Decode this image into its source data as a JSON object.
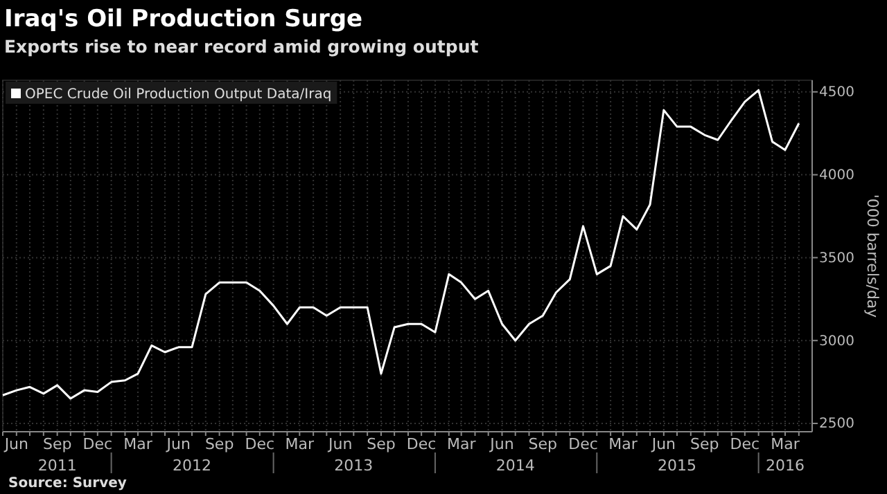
{
  "chart_data": {
    "type": "line",
    "title": "Iraq's Oil Production Surge",
    "subtitle": "Exports rise to near record amid growing output",
    "ylabel": "'000 barrels/day",
    "x": [
      "2011-05",
      "2011-06",
      "2011-07",
      "2011-08",
      "2011-09",
      "2011-10",
      "2011-11",
      "2011-12",
      "2012-01",
      "2012-02",
      "2012-03",
      "2012-04",
      "2012-05",
      "2012-06",
      "2012-07",
      "2012-08",
      "2012-09",
      "2012-10",
      "2012-11",
      "2012-12",
      "2013-01",
      "2013-02",
      "2013-03",
      "2013-04",
      "2013-05",
      "2013-06",
      "2013-07",
      "2013-08",
      "2013-09",
      "2013-10",
      "2013-11",
      "2013-12",
      "2014-01",
      "2014-02",
      "2014-03",
      "2014-04",
      "2014-05",
      "2014-06",
      "2014-07",
      "2014-08",
      "2014-09",
      "2014-10",
      "2014-11",
      "2014-12",
      "2015-01",
      "2015-02",
      "2015-03",
      "2015-04",
      "2015-05",
      "2015-06",
      "2015-07",
      "2015-08",
      "2015-09",
      "2015-10",
      "2015-11",
      "2015-12",
      "2016-01",
      "2016-02",
      "2016-03",
      "2016-04"
    ],
    "series": [
      {
        "name": "OPEC Crude Oil Production Output Data/Iraq",
        "color": "#ffffff",
        "values": [
          2670,
          2700,
          2720,
          2680,
          2730,
          2650,
          2700,
          2690,
          2750,
          2760,
          2800,
          2970,
          2930,
          2960,
          2960,
          3280,
          3350,
          3350,
          3350,
          3300,
          3210,
          3100,
          3200,
          3200,
          3150,
          3200,
          3200,
          3200,
          2800,
          3080,
          3100,
          3100,
          3050,
          3400,
          3350,
          3250,
          3300,
          3100,
          3000,
          3100,
          3150,
          3290,
          3370,
          3690,
          3400,
          3450,
          3750,
          3670,
          3820,
          4390,
          4290,
          4290,
          4240,
          4210,
          4330,
          4440,
          4510,
          4200,
          4150,
          4310
        ]
      }
    ],
    "xlim": [
      "2011-05",
      "2016-05"
    ],
    "ylim": [
      2450,
      4570
    ],
    "yticks": [
      2500,
      3000,
      3500,
      4000,
      4500
    ],
    "xticks": [
      {
        "value": "2011-05",
        "label": null
      },
      {
        "value": "2011-06",
        "label": "Jun"
      },
      {
        "value": "2011-07",
        "label": null
      },
      {
        "value": "2011-08",
        "label": null
      },
      {
        "value": "2011-09",
        "label": "Sep"
      },
      {
        "value": "2011-10",
        "label": null
      },
      {
        "value": "2011-11",
        "label": null
      },
      {
        "value": "2011-12",
        "label": "Dec"
      },
      {
        "value": "2012-01",
        "label": null
      },
      {
        "value": "2012-02",
        "label": null
      },
      {
        "value": "2012-03",
        "label": "Mar"
      },
      {
        "value": "2012-04",
        "label": null
      },
      {
        "value": "2012-05",
        "label": null
      },
      {
        "value": "2012-06",
        "label": "Jun"
      },
      {
        "value": "2012-07",
        "label": null
      },
      {
        "value": "2012-08",
        "label": null
      },
      {
        "value": "2012-09",
        "label": "Sep"
      },
      {
        "value": "2012-10",
        "label": null
      },
      {
        "value": "2012-11",
        "label": null
      },
      {
        "value": "2012-12",
        "label": "Dec"
      },
      {
        "value": "2013-01",
        "label": null
      },
      {
        "value": "2013-02",
        "label": null
      },
      {
        "value": "2013-03",
        "label": "Mar"
      },
      {
        "value": "2013-04",
        "label": null
      },
      {
        "value": "2013-05",
        "label": null
      },
      {
        "value": "2013-06",
        "label": "Jun"
      },
      {
        "value": "2013-07",
        "label": null
      },
      {
        "value": "2013-08",
        "label": null
      },
      {
        "value": "2013-09",
        "label": "Sep"
      },
      {
        "value": "2013-10",
        "label": null
      },
      {
        "value": "2013-11",
        "label": null
      },
      {
        "value": "2013-12",
        "label": "Dec"
      },
      {
        "value": "2014-01",
        "label": null
      },
      {
        "value": "2014-02",
        "label": null
      },
      {
        "value": "2014-03",
        "label": "Mar"
      },
      {
        "value": "2014-04",
        "label": null
      },
      {
        "value": "2014-05",
        "label": null
      },
      {
        "value": "2014-06",
        "label": "Jun"
      },
      {
        "value": "2014-07",
        "label": null
      },
      {
        "value": "2014-08",
        "label": null
      },
      {
        "value": "2014-09",
        "label": "Sep"
      },
      {
        "value": "2014-10",
        "label": null
      },
      {
        "value": "2014-11",
        "label": null
      },
      {
        "value": "2014-12",
        "label": "Dec"
      },
      {
        "value": "2015-01",
        "label": null
      },
      {
        "value": "2015-02",
        "label": null
      },
      {
        "value": "2015-03",
        "label": "Mar"
      },
      {
        "value": "2015-04",
        "label": null
      },
      {
        "value": "2015-05",
        "label": null
      },
      {
        "value": "2015-06",
        "label": "Jun"
      },
      {
        "value": "2015-07",
        "label": null
      },
      {
        "value": "2015-08",
        "label": null
      },
      {
        "value": "2015-09",
        "label": "Sep"
      },
      {
        "value": "2015-10",
        "label": null
      },
      {
        "value": "2015-11",
        "label": null
      },
      {
        "value": "2015-12",
        "label": "Dec"
      },
      {
        "value": "2016-01",
        "label": null
      },
      {
        "value": "2016-02",
        "label": null
      },
      {
        "value": "2016-03",
        "label": "Mar"
      },
      {
        "value": "2016-04",
        "label": null
      }
    ],
    "x2lim": [
      "2011-05",
      "2016-05"
    ],
    "x2ticks": [
      {
        "value": "2011-09",
        "label": "2011"
      },
      {
        "value": "2012-07",
        "label": "2012"
      },
      {
        "value": "2013-07",
        "label": "2013"
      },
      {
        "value": "2014-07",
        "label": "2014"
      },
      {
        "value": "2015-07",
        "label": "2015"
      },
      {
        "value": "2016-03",
        "label": "2016"
      }
    ],
    "grid": true,
    "legend": "top left",
    "annotations": [
      "Source: Survey"
    ]
  }
}
